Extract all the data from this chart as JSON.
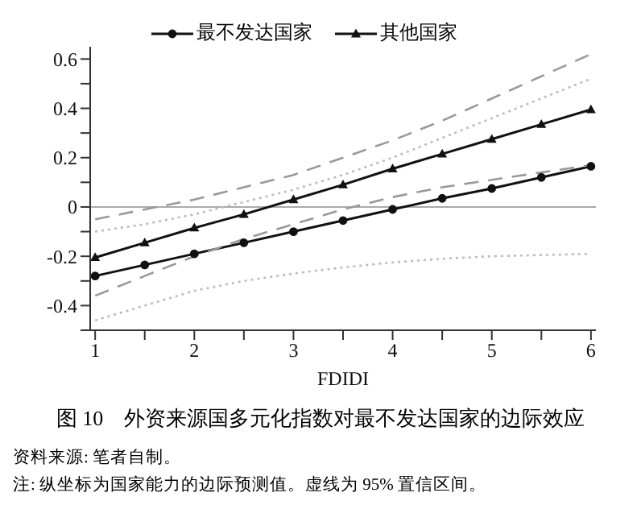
{
  "chart_data": {
    "type": "line",
    "title": "图 10　外资来源国多元化指数对最不发达国家的边际效应",
    "xlabel": "FDIDI",
    "annotations": [
      "资料来源: 笔者自制。",
      "注: 纵坐标为国家能力的边际预测值。虚线为 95% 置信区间。"
    ],
    "x": [
      1,
      1.5,
      2,
      2.5,
      3,
      3.5,
      4,
      4.5,
      5,
      5.5,
      6
    ],
    "series": [
      {
        "name": "最不发达国家",
        "color": "#111111",
        "marker": "circle",
        "values": [
          -0.28,
          -0.235,
          -0.19,
          -0.145,
          -0.1,
          -0.055,
          -0.01,
          0.035,
          0.075,
          0.12,
          0.165
        ]
      },
      {
        "name": "其他国家",
        "color": "#111111",
        "marker": "triangle",
        "values": [
          -0.205,
          -0.145,
          -0.085,
          -0.03,
          0.03,
          0.09,
          0.155,
          0.215,
          0.275,
          0.335,
          0.395
        ]
      },
      {
        "color": "#999999",
        "marker": "none",
        "line_style": "dashed",
        "values": [
          -0.05,
          -0.01,
          0.03,
          0.08,
          0.13,
          0.2,
          0.27,
          0.35,
          0.44,
          0.53,
          0.62
        ]
      },
      {
        "color": "#999999",
        "marker": "none",
        "line_style": "dashed",
        "values": [
          -0.36,
          -0.28,
          -0.2,
          -0.13,
          -0.07,
          -0.01,
          0.04,
          0.08,
          0.11,
          0.14,
          0.17
        ]
      },
      {
        "color": "#bbbbbb",
        "marker": "none",
        "line_style": "dotted",
        "values": [
          -0.1,
          -0.07,
          -0.03,
          0.02,
          0.07,
          0.13,
          0.2,
          0.28,
          0.36,
          0.44,
          0.52
        ]
      },
      {
        "color": "#bbbbbb",
        "marker": "none",
        "line_style": "dotted",
        "values": [
          -0.46,
          -0.4,
          -0.34,
          -0.3,
          -0.27,
          -0.245,
          -0.225,
          -0.21,
          -0.2,
          -0.195,
          -0.19
        ]
      }
    ],
    "xlim": [
      0.95,
      6.05
    ],
    "xticks": [
      1,
      {
        "value": 1.5,
        "label": null
      },
      2,
      {
        "value": 2.5,
        "label": null
      },
      3,
      {
        "value": 3.5,
        "label": null
      },
      4,
      {
        "value": 4.5,
        "label": null
      },
      5,
      {
        "value": 5.5,
        "label": null
      },
      6
    ],
    "ylim": [
      -0.5,
      0.65
    ],
    "yticks": [
      {
        "value": -0.5,
        "label": null
      },
      -0.4,
      {
        "value": -0.3,
        "label": null
      },
      -0.2,
      {
        "value": -0.1,
        "label": null
      },
      0,
      {
        "value": 0.1,
        "label": null
      },
      0.2,
      {
        "value": 0.3,
        "label": null
      },
      0.4,
      {
        "value": 0.5,
        "label": null
      },
      0.6
    ],
    "ref_lines": [
      {
        "axis": "y",
        "value": 0,
        "color": "#aaaaaa"
      }
    ],
    "legend": "top",
    "grid": false
  }
}
